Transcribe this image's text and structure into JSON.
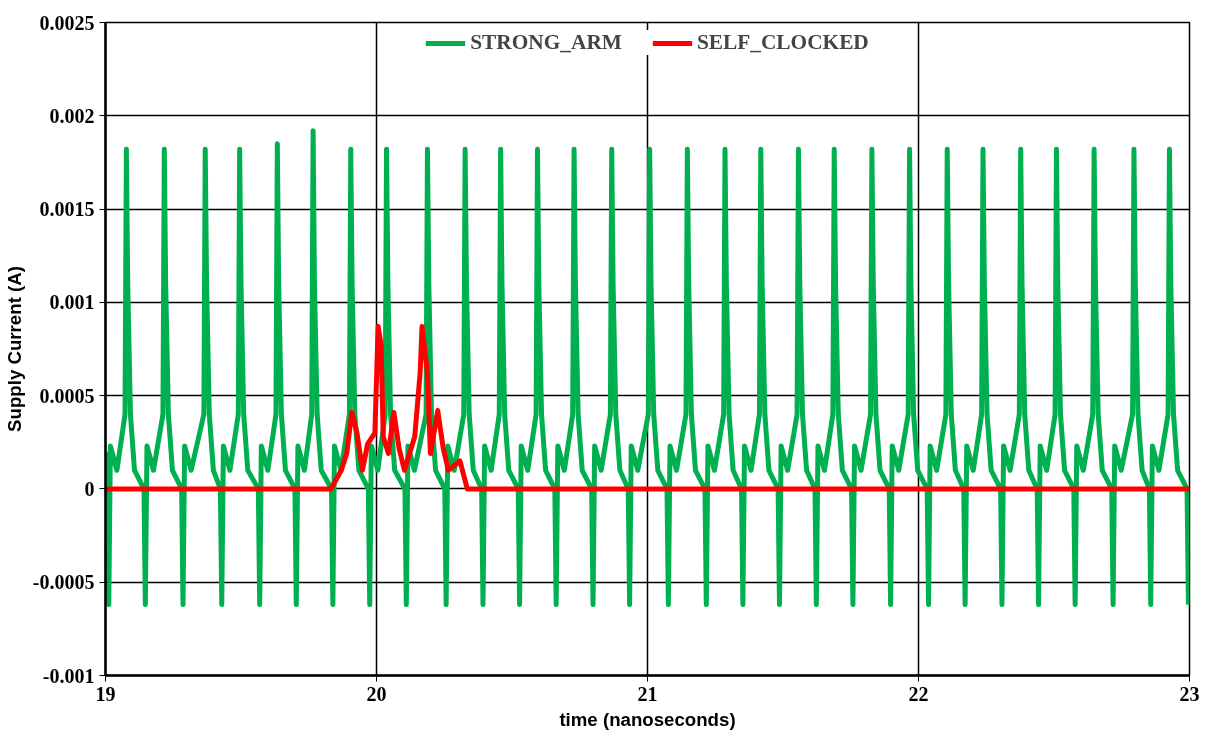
{
  "chart_data": {
    "type": "line",
    "xlabel": "time (nanoseconds)",
    "ylabel": "Supply Current (A)",
    "xlim": [
      19,
      23
    ],
    "ylim": [
      -0.001,
      0.0025
    ],
    "xticks": [
      19,
      20,
      21,
      22,
      23
    ],
    "yticks": [
      -0.001,
      -0.0005,
      0,
      0.0005,
      0.001,
      0.0015,
      0.002,
      0.0025
    ],
    "grid": true,
    "legend": "top",
    "marker": "none",
    "line_style": "solid",
    "series": [
      {
        "name": "STRONG_ARM",
        "color": "#00b050",
        "x": [
          19.0,
          19.007,
          19.012,
          19.018,
          19.042,
          19.072,
          19.077,
          19.082,
          19.092,
          19.107,
          19.142,
          19.147,
          19.153,
          19.177,
          19.212,
          19.217,
          19.222,
          19.232,
          19.247,
          19.281,
          19.286,
          19.292,
          19.316,
          19.363,
          19.368,
          19.373,
          19.383,
          19.398,
          19.424,
          19.429,
          19.435,
          19.459,
          19.49,
          19.495,
          19.5,
          19.51,
          19.525,
          19.564,
          19.569,
          19.575,
          19.599,
          19.629,
          19.634,
          19.639,
          19.649,
          19.664,
          19.699,
          19.704,
          19.71,
          19.734,
          19.761,
          19.766,
          19.771,
          19.781,
          19.796,
          19.834,
          19.839,
          19.845,
          19.869,
          19.9,
          19.905,
          19.91,
          19.92,
          19.935,
          19.97,
          19.975,
          19.981,
          20.005,
          20.032,
          20.037,
          20.042,
          20.052,
          20.067,
          20.105,
          20.11,
          20.116,
          20.14,
          20.183,
          20.188,
          20.193,
          20.203,
          20.218,
          20.252,
          20.257,
          20.263,
          20.287,
          20.322,
          20.327,
          20.332,
          20.342,
          20.357,
          20.388,
          20.393,
          20.399,
          20.423,
          20.453,
          20.458,
          20.463,
          20.473,
          20.488,
          20.523,
          20.528,
          20.534,
          20.558,
          20.589,
          20.594,
          20.599,
          20.609,
          20.624,
          20.658,
          20.663,
          20.669,
          20.693,
          20.724,
          20.729,
          20.734,
          20.744,
          20.759,
          20.794,
          20.799,
          20.805,
          20.829,
          20.863,
          20.868,
          20.873,
          20.883,
          20.898,
          20.929,
          20.934,
          20.94,
          20.964,
          21.003,
          21.008,
          21.013,
          21.023,
          21.038,
          21.072,
          21.077,
          21.083,
          21.107,
          21.142,
          21.147,
          21.152,
          21.162,
          21.177,
          21.212,
          21.217,
          21.223,
          21.247,
          21.281,
          21.286,
          21.291,
          21.301,
          21.316,
          21.347,
          21.352,
          21.358,
          21.382,
          21.413,
          21.418,
          21.423,
          21.433,
          21.448,
          21.482,
          21.487,
          21.493,
          21.517,
          21.552,
          21.557,
          21.562,
          21.572,
          21.587,
          21.618,
          21.623,
          21.629,
          21.653,
          21.684,
          21.689,
          21.694,
          21.704,
          21.719,
          21.753,
          21.758,
          21.764,
          21.788,
          21.823,
          21.828,
          21.833,
          21.843,
          21.858,
          21.892,
          21.897,
          21.903,
          21.927,
          21.962,
          21.967,
          21.972,
          21.982,
          21.997,
          22.032,
          22.037,
          22.043,
          22.067,
          22.101,
          22.106,
          22.111,
          22.121,
          22.136,
          22.167,
          22.172,
          22.178,
          22.202,
          22.233,
          22.238,
          22.243,
          22.253,
          22.268,
          22.303,
          22.308,
          22.314,
          22.338,
          22.372,
          22.377,
          22.382,
          22.392,
          22.407,
          22.438,
          22.443,
          22.449,
          22.473,
          22.504,
          22.509,
          22.514,
          22.524,
          22.539,
          22.573,
          22.578,
          22.584,
          22.608,
          22.643,
          22.648,
          22.653,
          22.663,
          22.678,
          22.713,
          22.718,
          22.724,
          22.748,
          22.79,
          22.795,
          22.8,
          22.81,
          22.825,
          22.852,
          22.857,
          22.863,
          22.887,
          22.921,
          22.926,
          22.931,
          22.941,
          22.956,
          22.991,
          22.996
        ],
        "values": [
          0.0002,
          0,
          -0.00062,
          0.00023,
          0.0001,
          0.0004,
          0.00182,
          0.0011,
          0.0004,
          0.0001,
          0,
          -0.00062,
          0.00023,
          0.0001,
          0.0004,
          0.00182,
          0.0011,
          0.0004,
          0.0001,
          0,
          -0.00062,
          0.00023,
          0.0001,
          0.0004,
          0.00182,
          0.0011,
          0.0004,
          0.0001,
          0,
          -0.00062,
          0.00023,
          0.0001,
          0.0004,
          0.00182,
          0.0011,
          0.0004,
          0.0001,
          0,
          -0.00062,
          0.00023,
          0.0001,
          0.0004,
          0.00185,
          0.0011,
          0.0004,
          0.0001,
          0,
          -0.00062,
          0.00023,
          0.0001,
          0.0004,
          0.00192,
          0.0011,
          0.0004,
          0.0001,
          0,
          -0.00062,
          0.00023,
          0.0001,
          0.0004,
          0.00182,
          0.0011,
          0.0004,
          0.0001,
          0,
          -0.00062,
          0.00023,
          0.0001,
          0.0004,
          0.00182,
          0.0011,
          0.0004,
          0.0001,
          0,
          -0.00062,
          0.00023,
          0.0001,
          0.0004,
          0.00182,
          0.0011,
          0.0004,
          0.0001,
          0,
          -0.00062,
          0.00023,
          0.0001,
          0.0004,
          0.00182,
          0.0011,
          0.0004,
          0.0001,
          0,
          -0.00062,
          0.00023,
          0.0001,
          0.0004,
          0.00182,
          0.0011,
          0.0004,
          0.0001,
          0,
          -0.00062,
          0.00023,
          0.0001,
          0.0004,
          0.00182,
          0.0011,
          0.0004,
          0.0001,
          0,
          -0.00062,
          0.00023,
          0.0001,
          0.0004,
          0.00182,
          0.0011,
          0.0004,
          0.0001,
          0,
          -0.00062,
          0.00023,
          0.0001,
          0.0004,
          0.00182,
          0.0011,
          0.0004,
          0.0001,
          0,
          -0.00062,
          0.00023,
          0.0001,
          0.0004,
          0.00182,
          0.0011,
          0.0004,
          0.0001,
          0,
          -0.00062,
          0.00023,
          0.0001,
          0.0004,
          0.00182,
          0.0011,
          0.0004,
          0.0001,
          0,
          -0.00062,
          0.00023,
          0.0001,
          0.0004,
          0.00182,
          0.0011,
          0.0004,
          0.0001,
          0,
          -0.00062,
          0.00023,
          0.0001,
          0.0004,
          0.00182,
          0.0011,
          0.0004,
          0.0001,
          0,
          -0.00062,
          0.00023,
          0.0001,
          0.0004,
          0.00182,
          0.0011,
          0.0004,
          0.0001,
          0,
          -0.00062,
          0.00023,
          0.0001,
          0.0004,
          0.00182,
          0.0011,
          0.0004,
          0.0001,
          0,
          -0.00062,
          0.00023,
          0.0001,
          0.0004,
          0.00182,
          0.0011,
          0.0004,
          0.0001,
          0,
          -0.00062,
          0.00023,
          0.0001,
          0.0004,
          0.00182,
          0.0011,
          0.0004,
          0.0001,
          0,
          -0.00062,
          0.00023,
          0.0001,
          0.0004,
          0.00182,
          0.0011,
          0.0004,
          0.0001,
          0,
          -0.00062,
          0.00023,
          0.0001,
          0.0004,
          0.00182,
          0.0011,
          0.0004,
          0.0001,
          0,
          -0.00062,
          0.00023,
          0.0001,
          0.0004,
          0.00182,
          0.0011,
          0.0004,
          0.0001,
          0,
          -0.00062,
          0.00023,
          0.0001,
          0.0004,
          0.00182,
          0.0011,
          0.0004,
          0.0001,
          0,
          -0.00062,
          0.00023,
          0.0001,
          0.0004,
          0.00182,
          0.0011,
          0.0004,
          0.0001,
          0,
          -0.00062,
          0.00023,
          0.0001,
          0.0004,
          0.00182,
          0.0011,
          0.0004,
          0.0001,
          0,
          -0.00062,
          0.00023,
          0.0001,
          0.0004,
          0.00182,
          0.0011,
          0.0004,
          0.0001,
          0,
          -0.00062
        ]
      },
      {
        "name": "SELF_CLOCKED",
        "color": "#ff0000",
        "x": [
          19.0,
          19.793,
          19.832,
          19.87,
          19.89,
          19.909,
          19.928,
          19.948,
          19.967,
          19.994,
          20.006,
          20.017,
          20.025,
          20.044,
          20.064,
          20.083,
          20.103,
          20.141,
          20.161,
          20.168,
          20.188,
          20.199,
          20.226,
          20.246,
          20.265,
          20.308,
          20.335,
          20.346,
          23.0
        ],
        "values": [
          0,
          0,
          0,
          0.0001,
          0.00019,
          0.00041,
          0.0003,
          0.0001,
          0.00024,
          0.0003,
          0.00087,
          0.00077,
          0.00028,
          0.00019,
          0.00041,
          0.00022,
          0.0001,
          0.00028,
          0.00062,
          0.00087,
          0.00062,
          0.00019,
          0.00042,
          0.00022,
          0.0001,
          0.00015,
          0,
          0,
          0
        ]
      }
    ]
  }
}
